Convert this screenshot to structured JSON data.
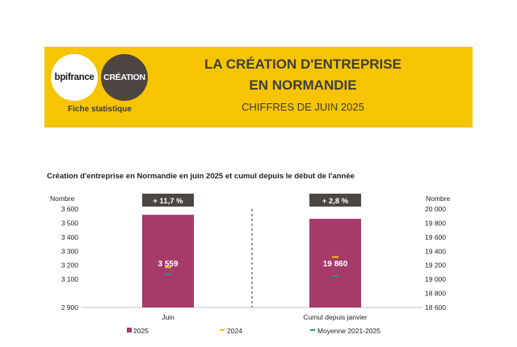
{
  "header": {
    "logo_bpi": "bpifrance",
    "logo_creation": "CRÉATION",
    "fiche": "Fiche statistique",
    "title_line1": "LA CRÉATION D'ENTREPRISE",
    "title_line2": "EN NORMANDIE",
    "subtitle": "CHIFFRES DE JUIN 2025"
  },
  "colors": {
    "banner": "#f6c400",
    "bar": "#a53a6b",
    "marker_2024": "#f6c400",
    "marker_moyenne": "#1b9a86",
    "badge": "#4d4542"
  },
  "chart_data": {
    "type": "bar",
    "title": "Création d'entreprise en Normandie en juin 2025 et cumul depuis le début de l'année",
    "left_axis": {
      "label": "Nombre",
      "ticks": [
        "3 600",
        "3 500",
        "3 400",
        "3 300",
        "3 200",
        "3 100",
        "2 900"
      ],
      "ylim": [
        2900,
        3600
      ],
      "tick_values": [
        3600,
        3500,
        3400,
        3300,
        3200,
        3100,
        2900
      ]
    },
    "right_axis": {
      "label": "Nombre",
      "ticks": [
        "20 000",
        "19 800",
        "19 600",
        "19 400",
        "19 200",
        "19 000",
        "18 800",
        "18 600"
      ],
      "ylim": [
        18600,
        20000
      ],
      "tick_values": [
        20000,
        19800,
        19600,
        19400,
        19200,
        19000,
        18800,
        18600
      ]
    },
    "categories": [
      "Juin",
      "Cumul depuis janvier"
    ],
    "axis": [
      "left",
      "right"
    ],
    "series": [
      {
        "name": "2025",
        "kind": "bar",
        "values": [
          3559,
          19860
        ],
        "labels": [
          "3 559",
          "19 860"
        ]
      },
      {
        "name": "2024",
        "kind": "marker",
        "values": [
          3186,
          19318
        ]
      },
      {
        "name": "Moyenne 2021-2025",
        "kind": "marker",
        "values": [
          3138,
          19045
        ]
      }
    ],
    "badges": [
      "+ 11,7 %",
      "+ 2,8 %"
    ],
    "legend_position": "bottom"
  }
}
